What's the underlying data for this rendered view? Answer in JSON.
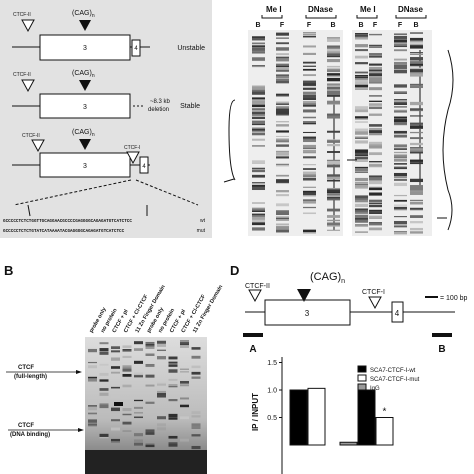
{
  "panel_a": {
    "ctcf2": "CTCF-II",
    "cag": "(CAG)",
    "cag_sub": "n",
    "exon3": "3",
    "exon4": "4",
    "unstable": "Unstable",
    "stable": "Stable",
    "deletion": "~8.3 kb",
    "deletion2": "deletion",
    "ctcf1": "CTCF-I",
    "seq_wt": "GCCCCCTCTCTGGTTGCAGGAACGCCCCGAGGGGCAGAGATGTCATCTCC",
    "seq_mut": "GCCCCCTCTCTGTATCATAAAATACGAGGGGCAGAGATGTCATCTCC",
    "wt": "wt",
    "mut": "mut"
  },
  "footprint": {
    "gel1": {
      "mei": "Me I",
      "dnase": "DNase",
      "lanes": [
        "B",
        "F",
        "F",
        "B"
      ]
    },
    "gel2": {
      "mei": "Me I",
      "dnase": "DNase",
      "lanes": [
        "B",
        "F",
        "F",
        "B"
      ]
    }
  },
  "panel_b": {
    "label": "B",
    "lanes": [
      "probe only",
      "no protein",
      "CTCF + pI",
      "CTCF + Cl-CTCF",
      "11 Zn Finger Domain",
      "probe only",
      "no protein",
      "CTCF + pI",
      "CTCF + Cl-CTCF",
      "11 Zn Finger Domain"
    ],
    "full": "CTCF",
    "full2": "(full-length)",
    "dbd": "CTCF",
    "dbd2": "(DNA binding)"
  },
  "panel_d": {
    "label": "D",
    "ctcf2": "CTCF-II",
    "cag": "(CAG)",
    "cag_sub": "n",
    "ctcf1": "CTCF-I",
    "exon3": "3",
    "exon4": "4",
    "scale": "= 100 bp",
    "a": "A",
    "b": "B",
    "chart": {
      "type": "bar",
      "ylabel": "IP / INPUT",
      "ylim": [
        0,
        1.6
      ],
      "yticks": [
        0.5,
        {
          "value": 1.0,
          "label": "1.0"
        },
        1.5
      ],
      "asterisk": "*",
      "series": [
        {
          "name": "SCA7-CTCF-I-wt",
          "color": "#000000",
          "values": [
            1.0,
            1.0
          ]
        },
        {
          "name": "SCA7-CTCF-I-mut",
          "color": "#ffffff",
          "values": [
            1.03,
            0.5
          ]
        },
        {
          "name": "IgG",
          "color": "#999999",
          "values": [
            0.05,
            null
          ]
        }
      ]
    }
  }
}
